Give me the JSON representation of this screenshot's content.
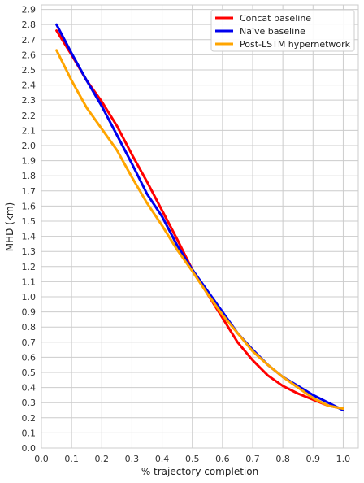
{
  "chart_data": {
    "type": "line",
    "xlabel": "% trajectory completion",
    "ylabel": "MHD (km)",
    "xlim": [
      0.0,
      1.05
    ],
    "ylim": [
      0.0,
      2.93
    ],
    "xticks": [
      0.0,
      0.1,
      0.2,
      0.3,
      0.4,
      0.5,
      0.6,
      0.7,
      0.8,
      0.9,
      1.0
    ],
    "yticks": [
      0.0,
      0.1,
      0.2,
      0.3,
      0.4,
      0.5,
      0.6,
      0.7,
      0.8,
      0.9,
      1.0,
      1.1,
      1.2,
      1.3,
      1.4,
      1.5,
      1.6,
      1.7,
      1.8,
      1.9,
      2.0,
      2.1,
      2.2,
      2.3,
      2.4,
      2.5,
      2.6,
      2.7,
      2.8,
      2.9
    ],
    "grid": true,
    "legend_position": "top-right",
    "x": [
      0.05,
      0.1,
      0.15,
      0.2,
      0.25,
      0.3,
      0.35,
      0.4,
      0.45,
      0.5,
      0.55,
      0.6,
      0.65,
      0.7,
      0.75,
      0.8,
      0.85,
      0.9,
      0.95,
      1.0
    ],
    "series": [
      {
        "name": "Concat baseline",
        "color": "#ff0000",
        "values": [
          2.76,
          2.6,
          2.43,
          2.29,
          2.13,
          1.94,
          1.76,
          1.57,
          1.38,
          1.18,
          1.02,
          0.86,
          0.7,
          0.58,
          0.48,
          0.41,
          0.36,
          0.32,
          0.28,
          0.26
        ]
      },
      {
        "name": "Naïve baseline",
        "color": "#0000ee",
        "values": [
          2.8,
          2.61,
          2.43,
          2.26,
          2.07,
          1.88,
          1.68,
          1.53,
          1.34,
          1.18,
          1.04,
          0.9,
          0.76,
          0.65,
          0.55,
          0.47,
          0.41,
          0.35,
          0.3,
          0.25
        ]
      },
      {
        "name": "Post-LSTM hypernetwork",
        "color": "#ffa500",
        "values": [
          2.63,
          2.43,
          2.25,
          2.11,
          1.97,
          1.79,
          1.62,
          1.47,
          1.31,
          1.17,
          1.02,
          0.88,
          0.76,
          0.64,
          0.55,
          0.47,
          0.4,
          0.33,
          0.28,
          0.26
        ]
      }
    ]
  }
}
